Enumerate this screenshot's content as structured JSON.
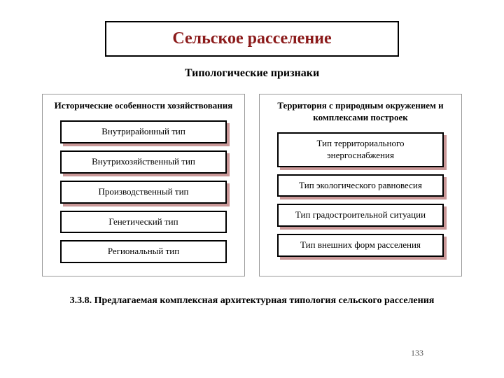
{
  "title": "Сельское расселение",
  "subtitle": "Типологические признаки",
  "left": {
    "header": "Исторические особенности хозяйствования",
    "items": [
      {
        "label": "Внутрирайонный тип",
        "shadow": true
      },
      {
        "label": "Внутрихозяйственный тип",
        "shadow": true
      },
      {
        "label": "Производственный тип",
        "shadow": true
      },
      {
        "label": "Генетический тип",
        "shadow": false
      },
      {
        "label": "Региональный тип",
        "shadow": false
      }
    ]
  },
  "right": {
    "header": "Территория с природным окружением и комплексами построек",
    "items": [
      {
        "label": "Тип территориального энергоснабжения",
        "shadow": true
      },
      {
        "label": "Тип экологического равновесия",
        "shadow": true
      },
      {
        "label": "Тип градостроительной ситуации",
        "shadow": true
      },
      {
        "label": "Тип внешних форм расселения",
        "shadow": true
      }
    ]
  },
  "caption": "3.3.8. Предлагаемая комплексная архитектурная типология сельского расселения",
  "pagenum": "133",
  "colors": {
    "title_text": "#8b1a1a",
    "shadow": "#c99797",
    "border": "#000000",
    "column_border": "#999999",
    "background": "#ffffff"
  }
}
